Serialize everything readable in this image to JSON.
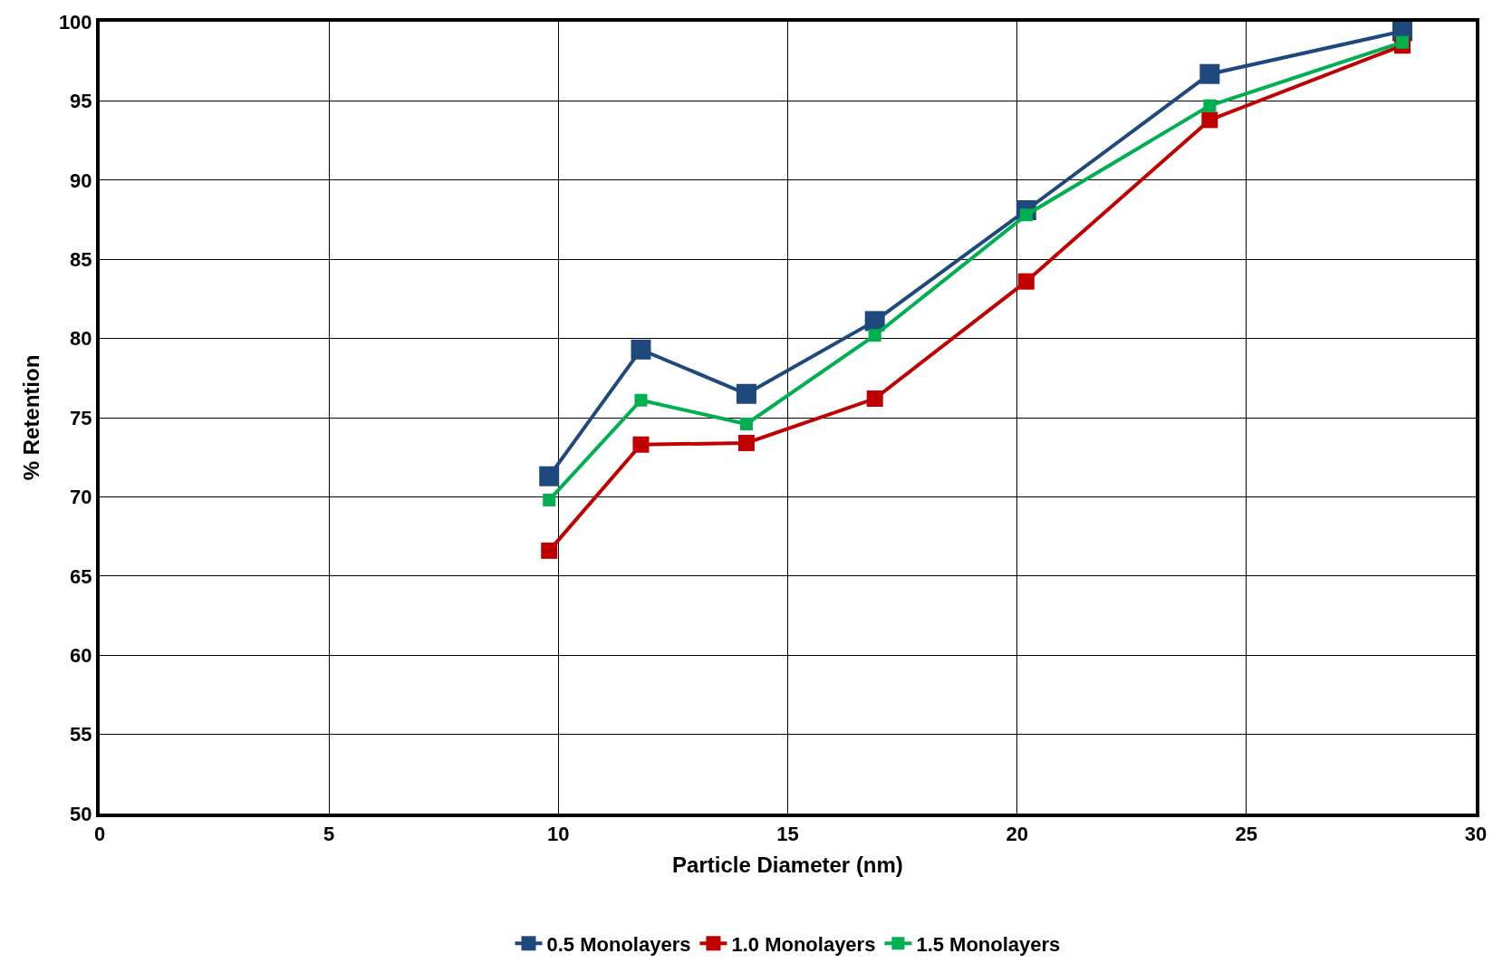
{
  "chart_data": {
    "type": "line",
    "xlabel": "Particle Diameter (nm)",
    "ylabel": "% Retention",
    "x": [
      9.8,
      11.8,
      14.1,
      16.9,
      20.2,
      24.2,
      28.4
    ],
    "series": [
      {
        "name": "0.5 Monolayers",
        "color": "#1f497d",
        "values": [
          71.3,
          79.3,
          76.5,
          81.1,
          88.1,
          96.7,
          99.4
        ]
      },
      {
        "name": "1.0 Monolayers",
        "color": "#c00000",
        "values": [
          66.6,
          73.3,
          73.4,
          76.2,
          83.6,
          93.8,
          98.5
        ]
      },
      {
        "name": "1.5 Monolayers",
        "color": "#00b050",
        "values": [
          69.8,
          76.1,
          74.6,
          80.2,
          87.8,
          94.7,
          98.7
        ]
      }
    ],
    "xlim": [
      0,
      30
    ],
    "xticks": [
      0,
      5,
      10,
      15,
      20,
      25,
      30
    ],
    "ylim": [
      50,
      100
    ],
    "yticks": [
      50,
      55,
      60,
      65,
      70,
      75,
      80,
      85,
      90,
      95,
      100
    ],
    "grid": true,
    "legend": "bottom",
    "marker": "square",
    "line_style": "solid"
  }
}
